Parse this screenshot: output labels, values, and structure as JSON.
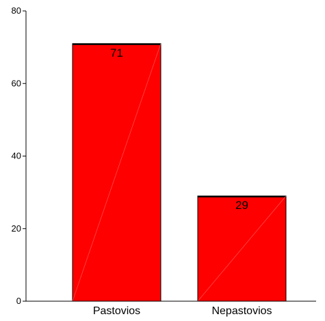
{
  "chart_data": {
    "type": "bar",
    "title": "",
    "xlabel": "",
    "ylabel": "",
    "categories": [
      "Pastovios",
      "Nepastovios"
    ],
    "values": [
      71,
      29
    ],
    "data_labels": [
      "71",
      "29"
    ],
    "ylim": [
      0,
      80
    ],
    "yticks": [
      0,
      20,
      40,
      60,
      80
    ],
    "ytick_labels": [
      "0",
      "20",
      "40",
      "60",
      "80"
    ],
    "grid": false,
    "legend": "none",
    "bar_color": "#ff0000",
    "bar_edge_color": "#000000"
  }
}
